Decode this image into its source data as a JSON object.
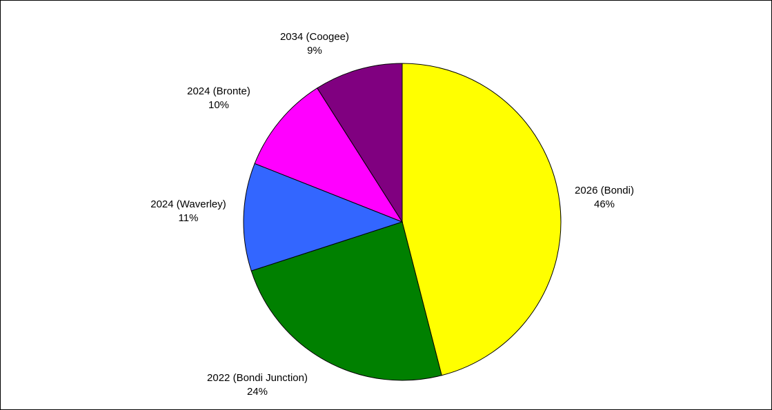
{
  "chart_data": {
    "type": "pie",
    "title": "",
    "slices": [
      {
        "category": "2026 (Bondi)",
        "value": 46,
        "label": "46%",
        "color": "#FFFF00"
      },
      {
        "category": "2022 (Bondi Junction)",
        "value": 24,
        "label": "24%",
        "color": "#008000"
      },
      {
        "category": "2024 (Waverley)",
        "value": 11,
        "label": "11%",
        "color": "#3366FF"
      },
      {
        "category": "2024 (Bronte)",
        "value": 10,
        "label": "10%",
        "color": "#FF00FF"
      },
      {
        "category": "2034 (Coogee)",
        "value": 9,
        "label": "9%",
        "color": "#800080"
      }
    ],
    "start_angle_deg": 0,
    "direction": "clockwise",
    "legend": "none",
    "slice_outline_color": "#000000"
  }
}
